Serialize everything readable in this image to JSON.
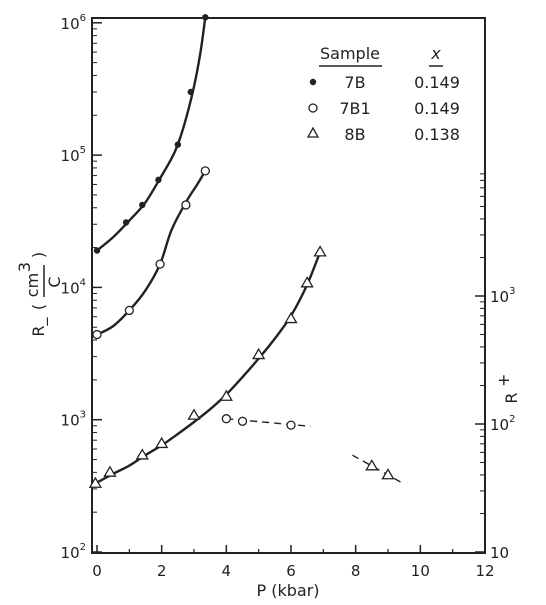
{
  "chart_data": {
    "type": "scatter",
    "title": "",
    "xlabel": "P (kbar)",
    "ylabel_left": {
      "main": "R_",
      "unit_num": "cm",
      "unit_exp": "3",
      "unit_den": "C"
    },
    "ylabel_right": {
      "main": "R",
      "sub": "+"
    },
    "xlim": [
      0,
      12
    ],
    "xticks": [
      "0",
      "2",
      "4",
      "6",
      "8",
      "10",
      "12"
    ],
    "ylim_left": [
      100,
      1500000
    ],
    "yscale_left": "log",
    "yticks_left": [
      {
        "base": "10",
        "exp": "2"
      },
      {
        "base": "10",
        "exp": "3"
      },
      {
        "base": "10",
        "exp": "4"
      },
      {
        "base": "10",
        "exp": "5"
      },
      {
        "base": "10",
        "exp": "6"
      }
    ],
    "yscale_right": "log",
    "yticks_right": [
      {
        "base": "10",
        "exp": ""
      },
      {
        "base": "10",
        "exp": "2"
      },
      {
        "base": "10",
        "exp": "3"
      }
    ],
    "legend": {
      "placement": "top-right",
      "header_sample": "Sample",
      "header_x": "x",
      "rows": [
        {
          "marker": "filled-circle",
          "sample": "7B",
          "x": "0.149"
        },
        {
          "marker": "open-circle",
          "sample": "7B1",
          "x": "0.149"
        },
        {
          "marker": "open-triangle",
          "sample": "8B",
          "x": "0.138"
        }
      ]
    },
    "series": [
      {
        "marker": "filled-circle",
        "axis": "left",
        "x": [
          0.0,
          0.9,
          1.4,
          1.9,
          2.5,
          2.9,
          3.35
        ],
        "y": [
          19000,
          31000,
          42000,
          65000,
          120000,
          300000,
          1100000
        ],
        "curve_x": [
          0.0,
          0.5,
          1.0,
          1.5,
          2.0,
          2.4,
          2.7,
          3.0,
          3.2,
          3.35
        ],
        "curve_y": [
          19000,
          24000,
          32000,
          44000,
          70000,
          105000,
          170000,
          330000,
          600000,
          1100000
        ]
      },
      {
        "marker": "open-circle",
        "axis": "left",
        "x": [
          0.0,
          1.0,
          1.95,
          2.75,
          3.35
        ],
        "y": [
          4400,
          6700,
          15000,
          42000,
          76000
        ],
        "curve_x": [
          0.0,
          0.5,
          1.0,
          1.5,
          1.95,
          2.3,
          2.75,
          3.1,
          3.35
        ],
        "curve_y": [
          4400,
          5100,
          6700,
          9500,
          15000,
          27000,
          44000,
          60000,
          76000
        ]
      },
      {
        "marker": "open-triangle",
        "axis": "left",
        "x": [
          -0.05,
          0.4,
          1.4,
          2.0,
          3.0,
          4.0,
          5.0,
          6.0,
          6.5,
          6.9
        ],
        "y": [
          330,
          400,
          540,
          660,
          1080,
          1500,
          3100,
          5800,
          10800,
          18500
        ],
        "curve_x": [
          -0.05,
          0.5,
          1.0,
          1.5,
          2.0,
          2.5,
          3.0,
          3.5,
          4.0,
          4.5,
          5.0,
          5.5,
          6.0,
          6.5,
          6.9
        ],
        "curve_y": [
          330,
          390,
          450,
          540,
          640,
          780,
          960,
          1200,
          1550,
          2100,
          2900,
          4100,
          6100,
          10500,
          18500
        ]
      },
      {
        "marker": "open-circle",
        "axis": "right",
        "dashed": true,
        "x": [
          4.0,
          4.5,
          6.0
        ],
        "y": [
          110,
          105,
          98
        ],
        "curve_x": [
          4.0,
          6.6
        ],
        "curve_y": [
          110,
          96
        ]
      },
      {
        "marker": "open-triangle",
        "axis": "right",
        "dashed": true,
        "x": [
          8.5,
          9.0
        ],
        "y": [
          47,
          40
        ],
        "curve_x": [
          7.9,
          9.5
        ],
        "curve_y": [
          57,
          34
        ]
      }
    ]
  }
}
